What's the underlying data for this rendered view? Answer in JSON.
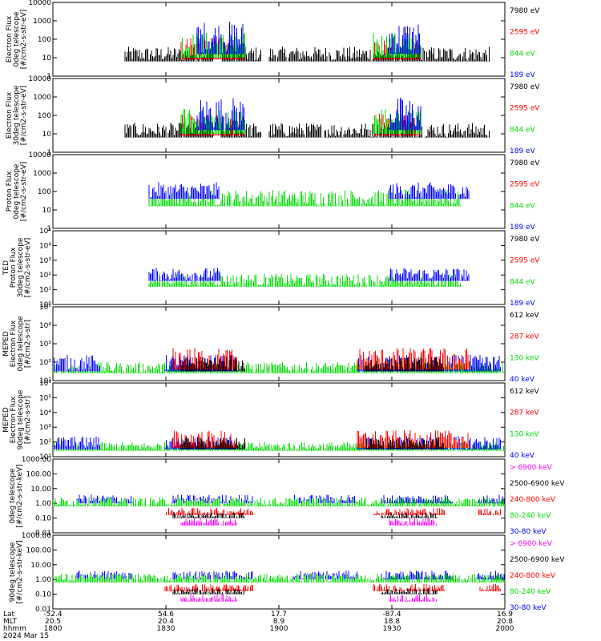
{
  "chart_data": [
    {
      "type": "line",
      "ylabel": [
        "Electron Flux",
        "0deg telescope",
        "[#/cm2-s-str-eV]"
      ],
      "yscale": "log",
      "yticks": [
        "1",
        "10",
        "100",
        "1000",
        "10000"
      ],
      "ylim_exp": [
        0,
        4
      ],
      "series": [
        {
          "name": "7980 eV",
          "color": "#000000"
        },
        {
          "name": "2595 eV",
          "color": "#ff0000"
        },
        {
          "name": "844 eV",
          "color": "#00dd00"
        },
        {
          "name": "189 eV",
          "color": "#0000ff"
        }
      ]
    },
    {
      "type": "line",
      "ylabel": [
        "Electron Flux",
        "30deg telescope",
        "[#/cm2-s-str-eV]"
      ],
      "yscale": "log",
      "yticks": [
        "1",
        "10",
        "100",
        "1000",
        "10000"
      ],
      "ylim_exp": [
        0,
        4
      ],
      "series": [
        {
          "name": "7980 eV",
          "color": "#000000"
        },
        {
          "name": "2595 eV",
          "color": "#ff0000"
        },
        {
          "name": "844 eV",
          "color": "#00dd00"
        },
        {
          "name": "189 eV",
          "color": "#0000ff"
        }
      ]
    },
    {
      "type": "line",
      "ylabel": [
        "Proton Flux",
        "0deg telescope",
        "[#/cm2-s-str-eV]"
      ],
      "yscale": "log",
      "yticks": [
        "1",
        "10",
        "100",
        "1000",
        "10000"
      ],
      "ylim_exp": [
        0,
        4
      ],
      "series": [
        {
          "name": "7980 eV",
          "color": "#000000"
        },
        {
          "name": "2595 eV",
          "color": "#ff0000"
        },
        {
          "name": "844 eV",
          "color": "#00dd00"
        },
        {
          "name": "189 eV",
          "color": "#0000ff"
        }
      ]
    },
    {
      "type": "line",
      "ylabel": [
        "TED",
        "Proton Flux",
        "30deg telescope",
        "[#/cm2-s-str-eV]"
      ],
      "yscale": "log",
      "yticks": [
        "10⁰",
        "10¹",
        "10²",
        "10³",
        "10⁴",
        "10⁵"
      ],
      "ylim_exp": [
        0,
        5
      ],
      "series": [
        {
          "name": "7980 eV",
          "color": "#000000"
        },
        {
          "name": "2595 eV",
          "color": "#ff0000"
        },
        {
          "name": "844 eV",
          "color": "#00dd00"
        },
        {
          "name": "189 eV",
          "color": "#0000ff"
        }
      ]
    },
    {
      "type": "line",
      "ylabel": [
        "MEPED",
        "Electron Flux",
        "0deg telescope",
        "[#/cm2-s-str]"
      ],
      "yscale": "log",
      "yticks": [
        "10¹",
        "10²",
        "10³",
        "10⁴",
        "10⁵"
      ],
      "ylim_exp": [
        1,
        5
      ],
      "series": [
        {
          "name": "612 keV",
          "color": "#000000"
        },
        {
          "name": "287 keV",
          "color": "#ff0000"
        },
        {
          "name": "130 keV",
          "color": "#00dd00"
        },
        {
          "name": "40 keV",
          "color": "#0000ff"
        }
      ]
    },
    {
      "type": "line",
      "ylabel": [
        "MEPED",
        "Electron Flux",
        "90deg telescope",
        "[#/cm2-s-str]"
      ],
      "yscale": "log",
      "yticks": [
        "10¹",
        "10²",
        "10³",
        "10⁴",
        "10⁵",
        "10⁶"
      ],
      "ylim_exp": [
        1,
        6
      ],
      "series": [
        {
          "name": "612 keV",
          "color": "#000000"
        },
        {
          "name": "287 keV",
          "color": "#ff0000"
        },
        {
          "name": "130 keV",
          "color": "#00dd00"
        },
        {
          "name": "40 keV",
          "color": "#0000ff"
        }
      ]
    },
    {
      "type": "line",
      "ylabel": [
        "0deg telescope",
        "[#/cm2-s-str-keV]"
      ],
      "yscale": "log",
      "yticks": [
        "0.01",
        "0.10",
        "1.00",
        "10.00",
        "100.00",
        "1000.00"
      ],
      "ylim_exp": [
        -2,
        3
      ],
      "series": [
        {
          "name": "> 6900 keV",
          "color": "#ff00ff"
        },
        {
          "name": "2500-6900 keV",
          "color": "#000000"
        },
        {
          "name": "240-800 keV",
          "color": "#ff0000"
        },
        {
          "name": "80-240 keV",
          "color": "#00dd00"
        },
        {
          "name": "30-80 keV",
          "color": "#0000ff"
        }
      ]
    },
    {
      "type": "line",
      "ylabel": [
        "90deg telescope",
        "[#/cm2-s-str-keV]"
      ],
      "yscale": "log",
      "yticks": [
        "0.01",
        "0.10",
        "1.00",
        "10.00",
        "100.00",
        "1000.00"
      ],
      "ylim_exp": [
        -2,
        3
      ],
      "series": [
        {
          "name": "> 6900 keV",
          "color": "#ff00ff"
        },
        {
          "name": "2500-6900 keV",
          "color": "#000000"
        },
        {
          "name": "240-800 keV",
          "color": "#ff0000"
        },
        {
          "name": "80-240 keV",
          "color": "#00dd00"
        },
        {
          "name": "30-80 keV",
          "color": "#0000ff"
        }
      ]
    }
  ],
  "xaxis": {
    "row_labels": [
      "Lat",
      "MLT",
      "hhmm"
    ],
    "ticks": [
      {
        "lat": "-52.4",
        "mlt": "20.5",
        "hhmm": "1800"
      },
      {
        "lat": "54.6",
        "mlt": "20.4",
        "hhmm": "1830"
      },
      {
        "lat": "17.7",
        "mlt": "8.9",
        "hhmm": "1900"
      },
      {
        "lat": "-87.4",
        "mlt": "18.8",
        "hhmm": "1930"
      },
      {
        "lat": "16.9",
        "mlt": "20.8",
        "hhmm": "2000"
      }
    ],
    "date": "2024 Mar 15"
  }
}
